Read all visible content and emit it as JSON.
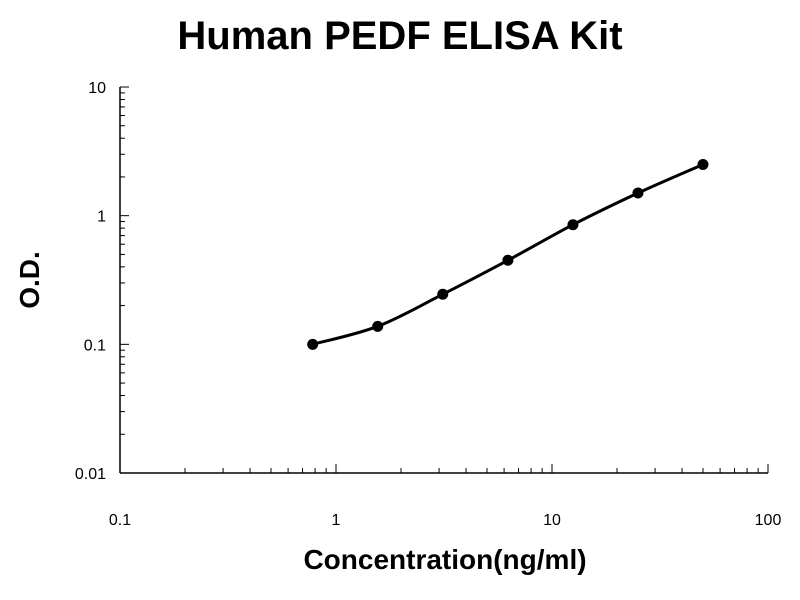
{
  "chart_data": {
    "type": "line",
    "title": "Human PEDF ELISA Kit",
    "xlabel": "Concentration(ng/ml)",
    "ylabel": "O.D.",
    "x_scale": "log",
    "y_scale": "log",
    "xlim": [
      0.1,
      100
    ],
    "ylim": [
      0.01,
      10
    ],
    "x_ticks": [
      "0.1",
      "1",
      "10",
      "100"
    ],
    "y_ticks": [
      "0.01",
      "0.1",
      "1",
      "10"
    ],
    "grid": false,
    "legend": "none",
    "line_color": "#000000",
    "series": [
      {
        "x": [
          0.78,
          1.56,
          3.12,
          6.25,
          12.5,
          25,
          50
        ],
        "y": [
          0.1,
          0.138,
          0.245,
          0.45,
          0.85,
          1.5,
          2.5
        ]
      }
    ]
  }
}
